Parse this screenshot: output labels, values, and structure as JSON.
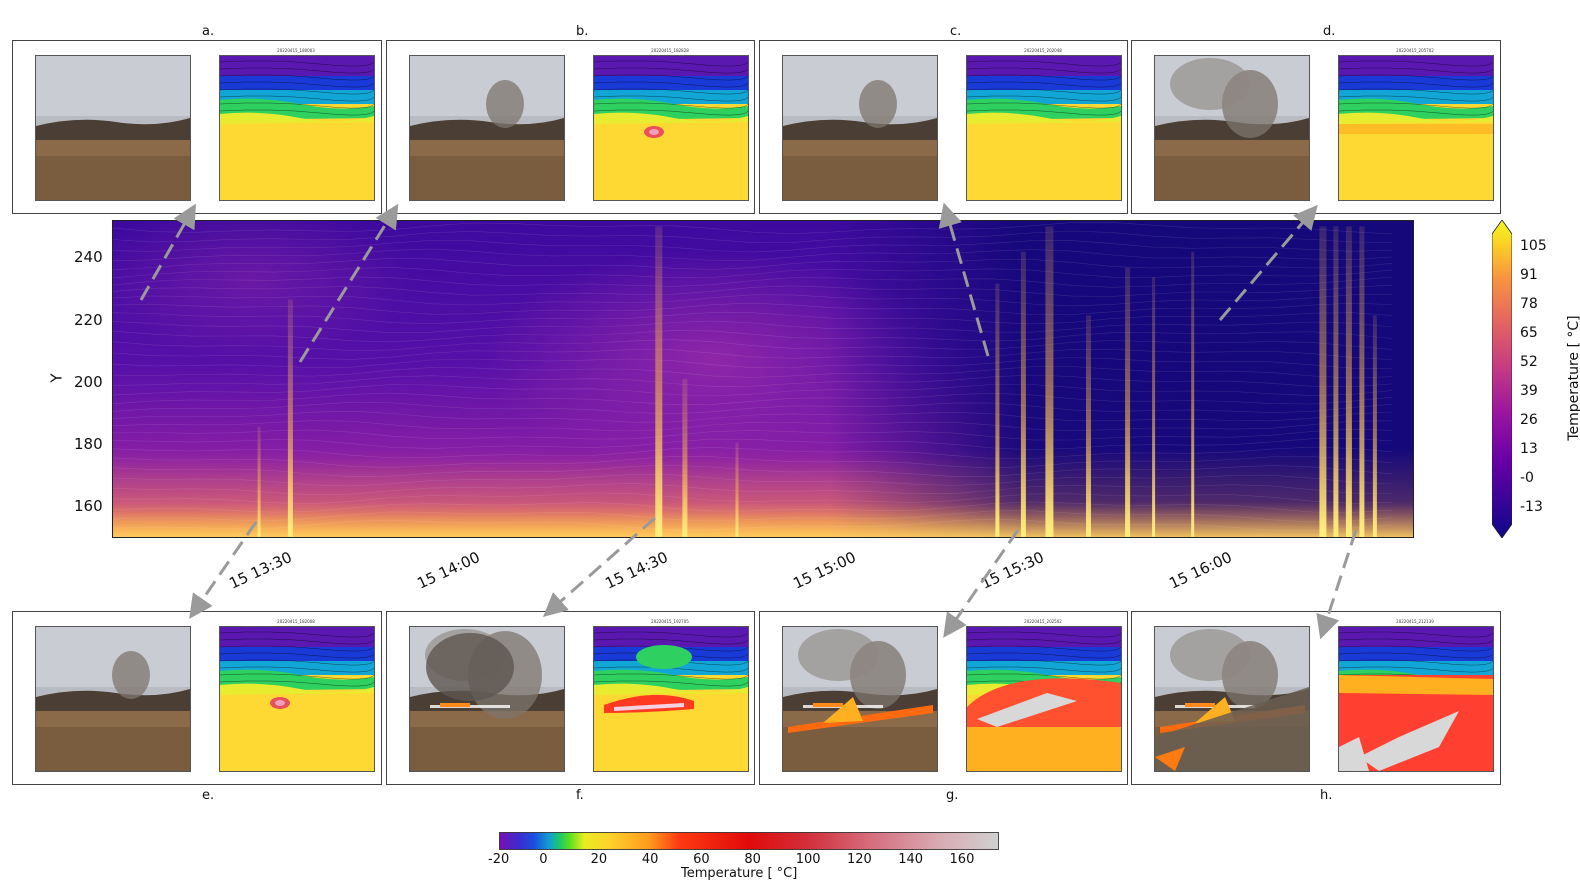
{
  "figure": {
    "y_axis_label": "Y",
    "y_ticks": [
      "240",
      "220",
      "200",
      "180",
      "160"
    ],
    "x_ticks": [
      "15 13:30",
      "15 14:00",
      "15 14:30",
      "15 15:00",
      "15 15:30",
      "15 16:00"
    ],
    "right_colorbar": {
      "label": "Temperature [$^\\circ$C]",
      "label_display": "Temperature [ °C]",
      "ticks": [
        "105",
        "91",
        "78",
        "65",
        "52",
        "39",
        "26",
        "13",
        "-0",
        "-13"
      ]
    },
    "bottom_colorbar": {
      "label": "Temperature [ °C]",
      "ticks": [
        "-20",
        "0",
        "20",
        "40",
        "60",
        "80",
        "100",
        "120",
        "140",
        "160"
      ]
    }
  },
  "panels": {
    "a": {
      "letter": "a.",
      "thermal_title": "20220415_180003"
    },
    "b": {
      "letter": "b.",
      "thermal_title": "20220415_182828"
    },
    "c": {
      "letter": "c.",
      "thermal_title": "20220415_202048"
    },
    "d": {
      "letter": "d.",
      "thermal_title": "20220415_205702"
    },
    "e": {
      "letter": "e.",
      "thermal_title": "20220415_182008"
    },
    "f": {
      "letter": "f.",
      "thermal_title": "20220415_192705"
    },
    "g": {
      "letter": "g.",
      "thermal_title": "20220415_202502"
    },
    "h": {
      "letter": "h.",
      "thermal_title": "20220415_212139"
    }
  },
  "colors": {
    "heatmap_cold": "#14087a",
    "heatmap_mid": "#7a1ea8",
    "heatmap_warm": "#f08a3a",
    "heatmap_hot": "#fff06a",
    "thermal_yellow": "#ffd933",
    "arrow_gray": "#9a9a9a"
  },
  "chart_data": {
    "type": "heatmap",
    "title": "",
    "xlabel": "",
    "ylabel": "Y",
    "ylim": [
      150,
      252
    ],
    "x_ticks": [
      "15 13:30",
      "15 14:00",
      "15 14:30",
      "15 15:00",
      "15 15:30",
      "15 16:00"
    ],
    "y_ticks": [
      160,
      180,
      200,
      220,
      240
    ],
    "colorbar": {
      "label": "Temperature [ °C]",
      "min": -13,
      "max": 105,
      "ticks": [
        105,
        91,
        78,
        65,
        52,
        39,
        26,
        13,
        0,
        -13
      ]
    },
    "hot_streaks_time_fraction": [
      0.113,
      0.137,
      0.42,
      0.44,
      0.48,
      0.68,
      0.7,
      0.72,
      0.75,
      0.78,
      0.8,
      0.83,
      0.93,
      0.94,
      0.95,
      0.96,
      0.97
    ],
    "inset_colorbar": {
      "label": "Temperature [ °C]",
      "min": -20,
      "max": 175,
      "ticks": [
        -20,
        0,
        20,
        40,
        60,
        80,
        100,
        120,
        140,
        160
      ]
    }
  }
}
